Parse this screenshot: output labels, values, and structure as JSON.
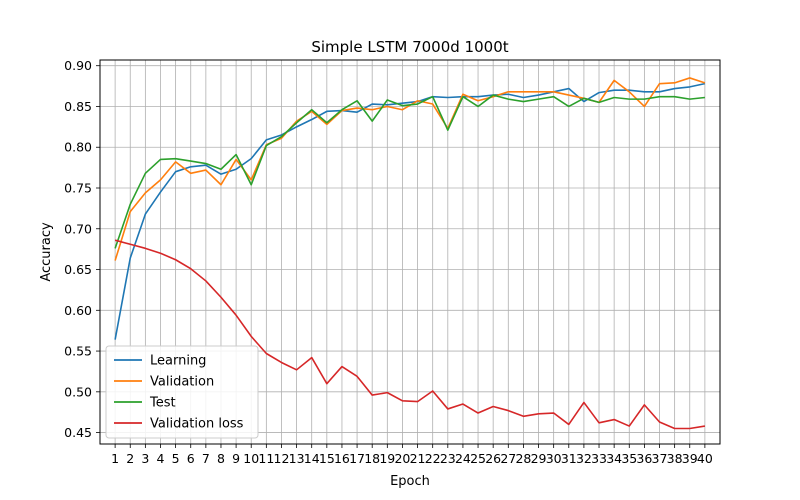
{
  "chart_data": {
    "type": "line",
    "title": "Simple LSTM 7000d 1000t",
    "xlabel": "Epoch",
    "ylabel": "Accuracy",
    "x": [
      1,
      2,
      3,
      4,
      5,
      6,
      7,
      8,
      9,
      10,
      11,
      12,
      13,
      14,
      15,
      16,
      17,
      18,
      19,
      20,
      21,
      22,
      23,
      24,
      25,
      26,
      27,
      28,
      29,
      30,
      31,
      32,
      33,
      34,
      35,
      36,
      37,
      38,
      39,
      40
    ],
    "xlim": [
      0,
      41
    ],
    "ylim": [
      0.436,
      0.907
    ],
    "yticks": [
      0.45,
      0.5,
      0.55,
      0.6,
      0.65,
      0.7,
      0.75,
      0.8,
      0.85,
      0.9
    ],
    "ytick_labels": [
      "0.45",
      "0.50",
      "0.55",
      "0.60",
      "0.65",
      "0.70",
      "0.75",
      "0.80",
      "0.85",
      "0.90"
    ],
    "grid": true,
    "legend_position": "lower-left",
    "series": [
      {
        "name": "Learning",
        "color": "#1f77b4",
        "values": [
          0.564,
          0.664,
          0.718,
          0.745,
          0.77,
          0.776,
          0.778,
          0.767,
          0.773,
          0.786,
          0.809,
          0.815,
          0.825,
          0.834,
          0.844,
          0.845,
          0.843,
          0.853,
          0.852,
          0.854,
          0.856,
          0.862,
          0.861,
          0.862,
          0.862,
          0.864,
          0.865,
          0.861,
          0.864,
          0.868,
          0.872,
          0.856,
          0.867,
          0.87,
          0.87,
          0.868,
          0.868,
          0.872,
          0.874,
          0.878
        ]
      },
      {
        "name": "Validation",
        "color": "#ff7f0e",
        "values": [
          0.661,
          0.721,
          0.744,
          0.76,
          0.782,
          0.768,
          0.772,
          0.754,
          0.785,
          0.76,
          0.803,
          0.811,
          0.832,
          0.844,
          0.828,
          0.845,
          0.848,
          0.846,
          0.85,
          0.846,
          0.857,
          0.853,
          0.823,
          0.865,
          0.857,
          0.862,
          0.868,
          0.868,
          0.868,
          0.868,
          0.864,
          0.86,
          0.855,
          0.882,
          0.868,
          0.85,
          0.878,
          0.879,
          0.885,
          0.879
        ]
      },
      {
        "name": "Test",
        "color": "#2ca02c",
        "values": [
          0.676,
          0.73,
          0.768,
          0.785,
          0.786,
          0.783,
          0.78,
          0.773,
          0.791,
          0.754,
          0.802,
          0.813,
          0.83,
          0.846,
          0.83,
          0.846,
          0.857,
          0.832,
          0.858,
          0.851,
          0.853,
          0.862,
          0.821,
          0.862,
          0.85,
          0.864,
          0.859,
          0.856,
          0.859,
          0.862,
          0.85,
          0.86,
          0.855,
          0.861,
          0.859,
          0.859,
          0.862,
          0.862,
          0.859,
          0.861
        ]
      },
      {
        "name": "Validation loss",
        "color": "#d62728",
        "values": [
          0.686,
          0.681,
          0.676,
          0.67,
          0.662,
          0.651,
          0.636,
          0.616,
          0.594,
          0.568,
          0.547,
          0.536,
          0.527,
          0.542,
          0.51,
          0.531,
          0.519,
          0.496,
          0.499,
          0.489,
          0.488,
          0.501,
          0.479,
          0.485,
          0.474,
          0.482,
          0.477,
          0.47,
          0.473,
          0.474,
          0.46,
          0.487,
          0.462,
          0.466,
          0.458,
          0.484,
          0.463,
          0.455,
          0.455,
          0.458
        ]
      }
    ]
  }
}
